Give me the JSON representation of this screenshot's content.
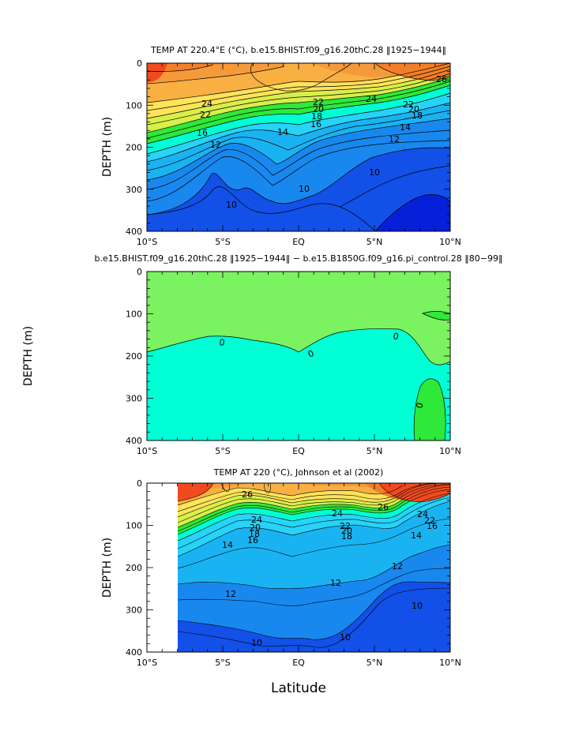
{
  "colors": {
    "red": "#f04a1e",
    "orange_dark": "#f27f28",
    "orange": "#f59a3a",
    "orange_light": "#f9b043",
    "yellow": "#ffe35a",
    "yellow_green": "#d8ef4a",
    "green": "#2ee83a",
    "light_green": "#7bf25f",
    "cyan": "#00ffd5",
    "light_blue": "#27d3f8",
    "sky_blue": "#1ab3f2",
    "blue": "#1888ef",
    "deep_blue": "#1350e8",
    "navy": "#0520d8"
  },
  "chart_data": [
    {
      "type": "heatmap",
      "title": "TEMP AT 220.4°E (°C), b.e15.BHIST.f09_g16.20thC.28 ‖1925−1944‖",
      "xlabel": "",
      "ylabel": "DEPTH  (m)",
      "xlim": [
        -10,
        10
      ],
      "ylim": [
        0,
        400
      ],
      "y_inverted": true,
      "x_ticks": [
        "10°S",
        "5°S",
        "EQ",
        "5°N",
        "10°N"
      ],
      "y_ticks": [
        "0",
        "100",
        "200",
        "300",
        "400"
      ],
      "contour_labels": [
        "26",
        "24",
        "24",
        "22",
        "22",
        "22",
        "20",
        "20",
        "18",
        "18",
        "16",
        "16",
        "14",
        "14",
        "12",
        "12",
        "10",
        "10",
        "10"
      ],
      "isotherm_depths": [
        {
          "level": 24,
          "x": [
            -10,
            -5,
            -2,
            0,
            2,
            5,
            10
          ],
          "depth": [
            92,
            88,
            75,
            70,
            75,
            88,
            70
          ]
        },
        {
          "level": 20,
          "x": [
            -10,
            -5,
            -2,
            0,
            2,
            5,
            10
          ],
          "depth": [
            155,
            140,
            123,
            120,
            123,
            125,
            102
          ]
        },
        {
          "level": 14,
          "x": [
            -10,
            -5,
            -2,
            0,
            2,
            5,
            10
          ],
          "depth": [
            205,
            182,
            165,
            163,
            165,
            160,
            140
          ]
        },
        {
          "level": 10,
          "x": [
            -10,
            -7,
            -5,
            -3,
            -1,
            0,
            1,
            3,
            5,
            7,
            10
          ],
          "depth": [
            362,
            345,
            320,
            268,
            302,
            310,
            290,
            330,
            245,
            210,
            205
          ]
        }
      ]
    },
    {
      "type": "heatmap",
      "title": "b.e15.BHIST.f09_g16.20thC.28 ‖1925−1944‖ − b.e15.B1850G.f09_g16.pi_control.28 ‖80−99‖",
      "xlabel": "",
      "ylabel": "DEPTH  (m)",
      "xlim": [
        -10,
        10
      ],
      "ylim": [
        0,
        400
      ],
      "y_inverted": true,
      "x_ticks": [
        "10°S",
        "5°S",
        "EQ",
        "5°N",
        "10°N"
      ],
      "y_ticks": [
        "0",
        "100",
        "200",
        "300",
        "400"
      ],
      "contour_labels": [
        "0",
        "0",
        "0",
        "0"
      ],
      "zero_line": {
        "x": [
          -10,
          -7,
          -5,
          -2,
          0,
          2,
          4,
          6,
          8,
          10
        ],
        "depth": [
          190,
          168,
          158,
          172,
          195,
          160,
          150,
          150,
          215,
          205
        ]
      }
    },
    {
      "type": "heatmap",
      "title": "TEMP AT 220 (°C), Johnson et al (2002)",
      "xlabel": "Latitude",
      "ylabel": "DEPTH  (m)",
      "xlim": [
        -10,
        10
      ],
      "ylim": [
        0,
        400
      ],
      "data_xrange": [
        -8,
        10
      ],
      "y_inverted": true,
      "x_ticks": [
        "10°S",
        "5°S",
        "EQ",
        "5°N",
        "10°N"
      ],
      "y_ticks": [
        "0",
        "100",
        "200",
        "300",
        "400"
      ],
      "contour_labels": [
        "26",
        "26",
        "24",
        "24",
        "24",
        "22",
        "22",
        "20",
        "20",
        "18",
        "18",
        "16",
        "16",
        "14",
        "14",
        "12",
        "12",
        "12",
        "10",
        "10",
        "10"
      ],
      "isotherm_depths": [
        {
          "level": 24,
          "x": [
            -8,
            -5,
            -3,
            0,
            3,
            5,
            8,
            10
          ],
          "depth": [
            80,
            70,
            85,
            70,
            70,
            100,
            60,
            45
          ]
        },
        {
          "level": 20,
          "x": [
            -8,
            -5,
            -3,
            0,
            3,
            5,
            8,
            10
          ],
          "depth": [
            160,
            130,
            105,
            110,
            120,
            150,
            80,
            65
          ]
        },
        {
          "level": 14,
          "x": [
            -8,
            -5,
            -3,
            0,
            3,
            5,
            8,
            10
          ],
          "depth": [
            200,
            165,
            130,
            140,
            140,
            165,
            110,
            90
          ]
        },
        {
          "level": 12,
          "x": [
            -8,
            -5,
            -3,
            0,
            3,
            5,
            8,
            10
          ],
          "depth": [
            255,
            240,
            230,
            255,
            225,
            205,
            190,
            180
          ]
        },
        {
          "level": 10,
          "x": [
            -8,
            -5,
            -3,
            -1,
            0,
            1,
            3,
            5,
            7,
            10
          ],
          "depth": [
            345,
            350,
            370,
            385,
            380,
            390,
            375,
            300,
            290,
            290
          ]
        }
      ]
    }
  ]
}
